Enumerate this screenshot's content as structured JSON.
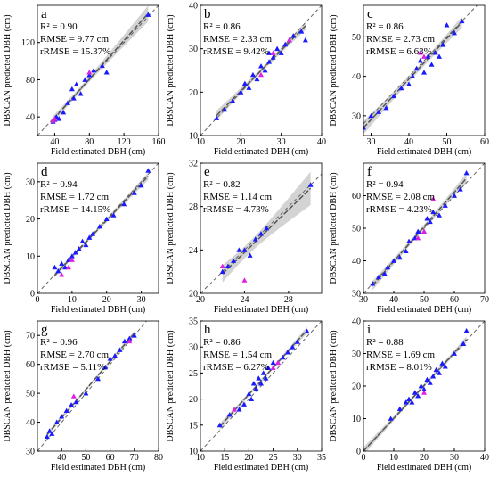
{
  "chart_data": [
    {
      "type": "scatter",
      "label": "a",
      "stats": [
        "R² = 0.90",
        "RMSE = 9.77 cm",
        "rRMSE = 15.37%"
      ],
      "xlabel": "Field estimated DBH (cm)",
      "ylabel": "DBSCAN predicted DBH (cm)",
      "xlim": [
        20,
        160
      ],
      "xticks": [
        40,
        80,
        120,
        160
      ],
      "ylim": [
        20,
        160
      ],
      "yticks": [
        40,
        80,
        120
      ],
      "series": [
        {
          "color": "#1a1aff",
          "x": [
            38,
            40,
            42,
            45,
            50,
            55,
            60,
            62,
            65,
            70,
            75,
            80,
            85,
            95,
            100,
            148
          ],
          "values": [
            35,
            37,
            40,
            38,
            45,
            55,
            70,
            60,
            75,
            65,
            80,
            85,
            90,
            95,
            88,
            150
          ]
        },
        {
          "color": "#e020e0",
          "x": [
            38,
            40,
            80
          ],
          "values": [
            36,
            38,
            88
          ]
        }
      ]
    },
    {
      "type": "scatter",
      "label": "b",
      "stats": [
        "R² = 0.86",
        "RMSE = 2.33 cm",
        "rRMSE = 9.42%"
      ],
      "xlabel": "Field estimated DBH (cm)",
      "ylabel": "DBSCAN predicted DBH (cm)",
      "xlim": [
        10,
        40
      ],
      "xticks": [
        10,
        20,
        30,
        40
      ],
      "ylim": [
        10,
        40
      ],
      "yticks": [
        10,
        20,
        30,
        40
      ],
      "series": [
        {
          "color": "#1a1aff",
          "x": [
            14,
            16,
            18,
            20,
            21,
            22,
            23,
            24,
            25,
            26,
            27,
            27,
            28,
            29,
            30,
            31,
            32,
            33,
            35,
            36
          ],
          "values": [
            14,
            16,
            18,
            20,
            22,
            21,
            24,
            23,
            26,
            25,
            27,
            29,
            28,
            30,
            29,
            31,
            32,
            33,
            34,
            32
          ]
        },
        {
          "color": "#e020e0",
          "x": [
            25,
            28,
            32
          ],
          "values": [
            24,
            29,
            32
          ]
        }
      ]
    },
    {
      "type": "scatter",
      "label": "c",
      "stats": [
        "R² = 0.86",
        "RMSE = 2.73 cm",
        "rRMSE = 6.63%"
      ],
      "xlabel": "Field estimated DBH (cm)",
      "ylabel": "DBSCAN predicted DBH (cm)",
      "xlim": [
        28,
        60
      ],
      "xticks": [
        30,
        40,
        50,
        60
      ],
      "ylim": [
        25,
        58
      ],
      "yticks": [
        30,
        40,
        50
      ],
      "series": [
        {
          "color": "#1a1aff",
          "x": [
            28,
            30,
            32,
            34,
            36,
            38,
            40,
            41,
            42,
            43,
            44,
            45,
            46,
            47,
            48,
            49,
            50,
            52,
            54
          ],
          "values": [
            27,
            30,
            31,
            32,
            35,
            37,
            38,
            40,
            42,
            44,
            41,
            45,
            43,
            46,
            45,
            48,
            53,
            51,
            54
          ]
        },
        {
          "color": "#e020e0",
          "x": [
            43,
            44
          ],
          "values": [
            46,
            45
          ]
        }
      ]
    },
    {
      "type": "scatter",
      "label": "d",
      "stats": [
        "R² = 0.94",
        "RMSE = 1.72 cm",
        "rRMSE = 14.15%"
      ],
      "xlabel": "Field estimated DBH (cm)",
      "ylabel": "DBSCAN predicted DBH (cm)",
      "xlim": [
        0,
        35
      ],
      "xticks": [
        0,
        10,
        20,
        30
      ],
      "ylim": [
        0,
        35
      ],
      "yticks": [
        0,
        10,
        20,
        30
      ],
      "series": [
        {
          "color": "#1a1aff",
          "x": [
            5,
            6,
            7,
            8,
            9,
            10,
            11,
            12,
            13,
            14,
            15,
            16,
            18,
            20,
            22,
            25,
            28,
            30,
            32
          ],
          "values": [
            7,
            6,
            8,
            7,
            9,
            10,
            11,
            12,
            14,
            13,
            15,
            16,
            18,
            20,
            21,
            24,
            27,
            29,
            33
          ]
        },
        {
          "color": "#e020e0",
          "x": [
            7,
            9,
            10
          ],
          "values": [
            5,
            7,
            9
          ]
        }
      ]
    },
    {
      "type": "scatter",
      "label": "e",
      "stats": [
        "R² = 0.82",
        "RMSE = 1.14 cm",
        "rRMSE = 4.73%"
      ],
      "xlabel": "Field estimated DBH (cm)",
      "ylabel": "DBSCAN predicted DBH (cm)",
      "xlim": [
        20,
        31
      ],
      "xticks": [
        20,
        24,
        28
      ],
      "ylim": [
        20,
        32
      ],
      "yticks": [
        20,
        24,
        28,
        32
      ],
      "series": [
        {
          "color": "#1a1aff",
          "x": [
            22,
            22.5,
            23,
            23.5,
            24,
            24.5,
            25,
            25.5,
            26,
            30
          ],
          "values": [
            22,
            22.5,
            23,
            24,
            24,
            23.5,
            25,
            25.5,
            26,
            30
          ]
        },
        {
          "color": "#e020e0",
          "x": [
            22,
            24
          ],
          "values": [
            22.5,
            21.2
          ]
        }
      ]
    },
    {
      "type": "scatter",
      "label": "f",
      "stats": [
        "R² = 0.94",
        "RMSE = 2.08 cm",
        "rRMSE = 4.23%"
      ],
      "xlabel": "Field estimated DBH (cm)",
      "ylabel": "DBSCAN predicted DBH (cm)",
      "xlim": [
        30,
        70
      ],
      "xticks": [
        30,
        40,
        50,
        60,
        70
      ],
      "ylim": [
        30,
        70
      ],
      "yticks": [
        30,
        40,
        50,
        60
      ],
      "series": [
        {
          "color": "#1a1aff",
          "x": [
            33,
            35,
            37,
            38,
            40,
            42,
            44,
            45,
            47,
            48,
            50,
            51,
            52,
            53,
            55,
            57,
            60,
            62,
            64
          ],
          "values": [
            33,
            35,
            36,
            38,
            40,
            41,
            43,
            46,
            47,
            49,
            49,
            53,
            52,
            55,
            54,
            57,
            60,
            62,
            67
          ]
        },
        {
          "color": "#e020e0",
          "x": [
            48,
            50,
            53
          ],
          "values": [
            47,
            49,
            59
          ]
        }
      ]
    },
    {
      "type": "scatter",
      "label": "g",
      "stats": [
        "R² = 0.96",
        "RMSE = 2.70 cm",
        "rRMSE = 5.11%"
      ],
      "xlabel": "Field estimated DBH (cm)",
      "ylabel": "DBSCAN predicted DBH (cm)",
      "xlim": [
        30,
        80
      ],
      "xticks": [
        40,
        50,
        60,
        70,
        80
      ],
      "ylim": [
        30,
        75
      ],
      "yticks": [
        30,
        40,
        50,
        60,
        70
      ],
      "series": [
        {
          "color": "#1a1aff",
          "x": [
            34,
            35,
            36,
            38,
            40,
            42,
            44,
            46,
            50,
            55,
            58,
            60,
            62,
            64,
            66,
            68,
            70
          ],
          "values": [
            35,
            37,
            36,
            40,
            42,
            44,
            46,
            47,
            50,
            55,
            59,
            62,
            63,
            65,
            68,
            69,
            70
          ]
        },
        {
          "color": "#e020e0",
          "x": [
            45,
            68
          ],
          "values": [
            49,
            68
          ]
        }
      ]
    },
    {
      "type": "scatter",
      "label": "h",
      "stats": [
        "R² = 0.86",
        "RMSE = 1.54 cm",
        "rRMSE = 6.27%"
      ],
      "xlabel": "Field estimated DBH (cm)",
      "ylabel": "DBSCAN predicted DBH (cm)",
      "xlim": [
        10,
        35
      ],
      "xticks": [
        10,
        15,
        20,
        25,
        30,
        35
      ],
      "ylim": [
        10,
        35
      ],
      "yticks": [
        10,
        15,
        20,
        25,
        30,
        35
      ],
      "series": [
        {
          "color": "#1a1aff",
          "x": [
            14,
            16,
            18,
            19,
            20,
            20.5,
            21,
            21.5,
            22,
            22.5,
            23,
            23.5,
            24,
            25,
            26,
            27,
            28,
            29,
            30,
            32
          ],
          "values": [
            15,
            17,
            18,
            19,
            21,
            20,
            23,
            22,
            24,
            23,
            25,
            24,
            26,
            27,
            27,
            28,
            29,
            30,
            31,
            33
          ]
        },
        {
          "color": "#e020e0",
          "x": [
            17,
            25,
            26
          ],
          "values": [
            18,
            26,
            27
          ]
        }
      ]
    },
    {
      "type": "scatter",
      "label": "i",
      "stats": [
        "R² = 0.88",
        "RMSE = 1.69 cm",
        "rRMSE = 8.01%"
      ],
      "xlabel": "Field estimated DBH (cm)",
      "ylabel": "DBSCAN predicted DBH (cm)",
      "xlim": [
        0,
        40
      ],
      "xticks": [
        0,
        10,
        20,
        30,
        40
      ],
      "ylim": [
        0,
        40
      ],
      "yticks": [
        0,
        10,
        20,
        30,
        40
      ],
      "series": [
        {
          "color": "#1a1aff",
          "x": [
            0,
            9,
            12,
            14,
            15,
            16,
            17,
            18,
            19,
            20,
            21,
            22,
            23,
            24,
            25,
            26,
            27,
            30,
            33,
            34
          ],
          "values": [
            0,
            10,
            13,
            15,
            16,
            15,
            18,
            17,
            20,
            19,
            22,
            21,
            23,
            25,
            24,
            27,
            26,
            30,
            33,
            37
          ]
        },
        {
          "color": "#e020e0",
          "x": [
            0,
            20
          ],
          "values": [
            0,
            18
          ]
        }
      ]
    }
  ]
}
